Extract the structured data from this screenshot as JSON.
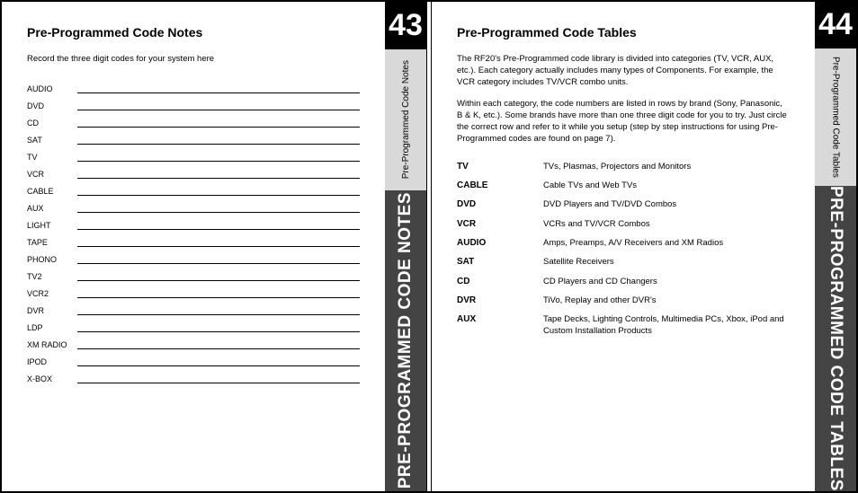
{
  "left": {
    "page_number": "43",
    "rail_small": "Pre-Programmed Code Notes",
    "rail_large": "PRE-PROGRAMMED CODE NOTES",
    "heading": "Pre-Programmed Code Notes",
    "intro": "Record the three digit codes for your system here",
    "rows": [
      "AUDIO",
      "DVD",
      "CD",
      "SAT",
      "TV",
      "VCR",
      "CABLE",
      "AUX",
      "LIGHT",
      "TAPE",
      "PHONO",
      "TV2",
      "VCR2",
      "DVR",
      "LDP",
      "XM RADIO",
      "IPOD",
      "X-BOX"
    ]
  },
  "right": {
    "page_number": "44",
    "rail_small": "Pre-Programmed Code Tables",
    "rail_large": "PRE-PROGRAMMED CODE TABLES",
    "heading": "Pre-Programmed Code Tables",
    "para1": "The RF20's Pre-Programmed code library is divided into categories (TV, VCR, AUX, etc.). Each category actually includes many types of Components. For example, the VCR category includes TV/VCR combo units.",
    "para2": "Within each category, the code numbers are listed in rows by brand (Sony, Panasonic, B & K, etc.). Some brands have more than one three digit code for you to try. Just circle the correct row and refer to it while you setup (step by step instructions for using Pre-Programmed codes are found on page 7).",
    "categories": [
      {
        "k": "TV",
        "v": "TVs, Plasmas, Projectors and Monitors"
      },
      {
        "k": "CABLE",
        "v": "Cable TVs and Web TVs"
      },
      {
        "k": "DVD",
        "v": "DVD Players and TV/DVD Combos"
      },
      {
        "k": "VCR",
        "v": "VCRs and TV/VCR Combos"
      },
      {
        "k": "AUDIO",
        "v": "Amps, Preamps, A/V Receivers and XM Radios"
      },
      {
        "k": "SAT",
        "v": "Satellite Receivers"
      },
      {
        "k": "CD",
        "v": "CD Players and CD Changers"
      },
      {
        "k": "DVR",
        "v": "TiVo, Replay and other DVR's"
      },
      {
        "k": "AUX",
        "v": "Tape Decks, Lighting Controls, Multimedia PCs, Xbox, iPod and Custom Installation Products"
      }
    ]
  }
}
